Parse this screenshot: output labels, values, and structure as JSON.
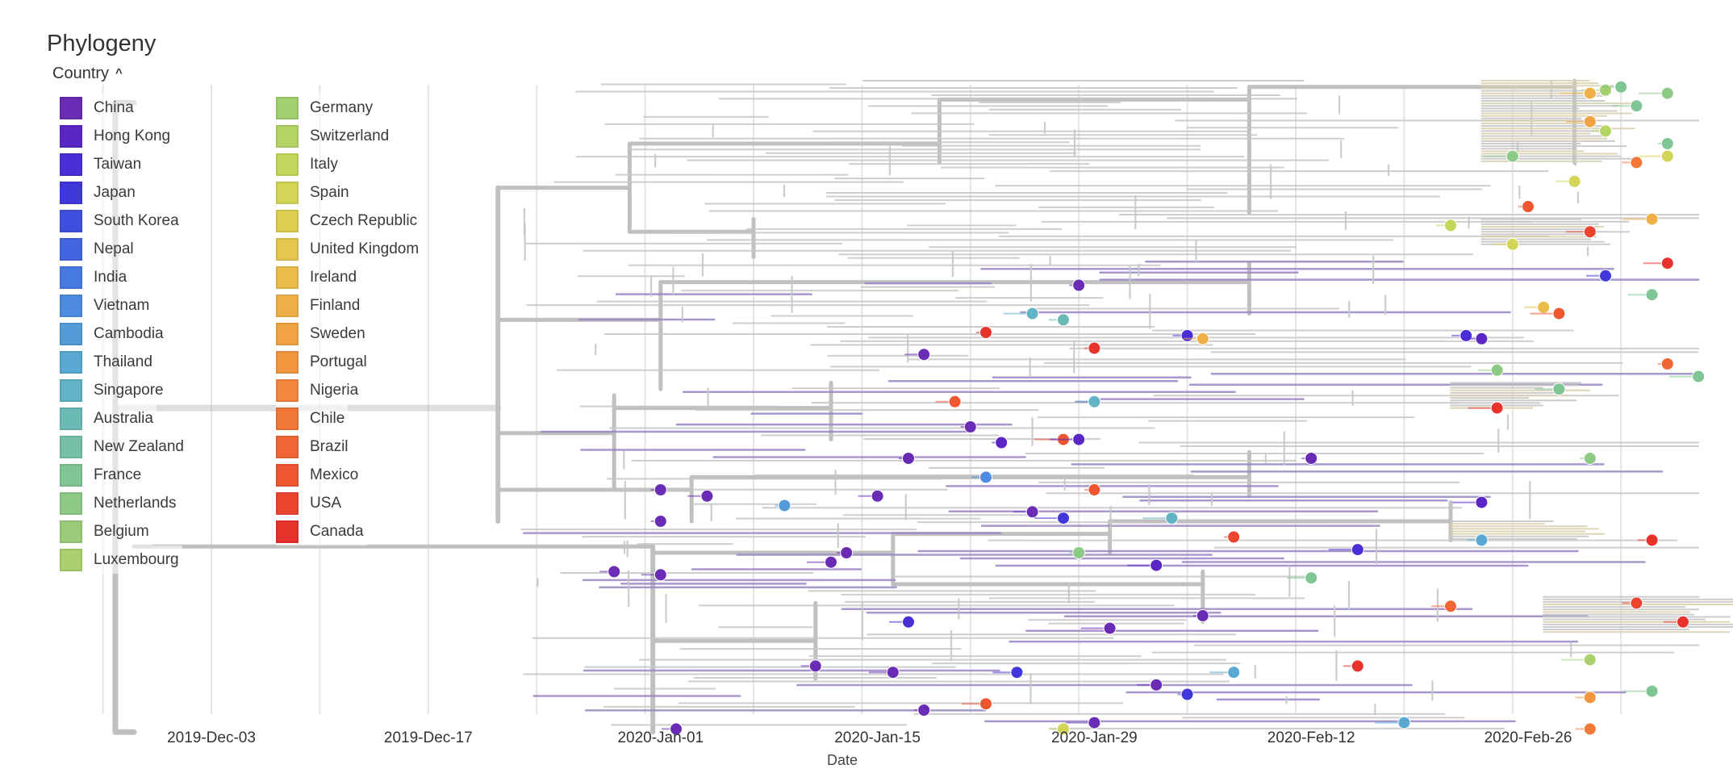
{
  "title": "Phylogeny",
  "legend_toggle_label": "Country",
  "colors": {
    "branch": "#c6c6c6",
    "trunk": "#c0c0c0",
    "grid": "#e4e4e4",
    "tick_text": "#333333"
  },
  "countries": [
    {
      "name": "China",
      "color": "#6a2cb4"
    },
    {
      "name": "Hong Kong",
      "color": "#5a27c6"
    },
    {
      "name": "Taiwan",
      "color": "#4c2ed6"
    },
    {
      "name": "Japan",
      "color": "#4138db"
    },
    {
      "name": "South Korea",
      "color": "#3f4fdd"
    },
    {
      "name": "Nepal",
      "color": "#4265e0"
    },
    {
      "name": "India",
      "color": "#477ae0"
    },
    {
      "name": "Vietnam",
      "color": "#4d8ce0"
    },
    {
      "name": "Cambodia",
      "color": "#539cd8"
    },
    {
      "name": "Thailand",
      "color": "#5aa9d2"
    },
    {
      "name": "Singapore",
      "color": "#62b3c6"
    },
    {
      "name": "Australia",
      "color": "#6cbab6"
    },
    {
      "name": "New Zealand",
      "color": "#76c0a6"
    },
    {
      "name": "France",
      "color": "#80c594"
    },
    {
      "name": "Netherlands",
      "color": "#8dca86"
    },
    {
      "name": "Belgium",
      "color": "#9ccc7a"
    },
    {
      "name": "Luxembourg",
      "color": "#abd06e"
    },
    {
      "name": "Germany",
      "color": "#a3d06e"
    },
    {
      "name": "Switzerland",
      "color": "#b4d464"
    },
    {
      "name": "Italy",
      "color": "#c4d65c"
    },
    {
      "name": "Spain",
      "color": "#d2d556"
    },
    {
      "name": "Czech Republic",
      "color": "#dccf52"
    },
    {
      "name": "United Kingdom",
      "color": "#e4c74e"
    },
    {
      "name": "Ireland",
      "color": "#e9bc4b"
    },
    {
      "name": "Finland",
      "color": "#eeb047"
    },
    {
      "name": "Sweden",
      "color": "#f1a343"
    },
    {
      "name": "Portugal",
      "color": "#f2963f"
    },
    {
      "name": "Nigeria",
      "color": "#f2873b"
    },
    {
      "name": "Chile",
      "color": "#f27838"
    },
    {
      "name": "Brazil",
      "color": "#f06735"
    },
    {
      "name": "Mexico",
      "color": "#ee5632"
    },
    {
      "name": "USA",
      "color": "#eb442f"
    },
    {
      "name": "Canada",
      "color": "#e8322c"
    }
  ],
  "chart_data": {
    "type": "scatter",
    "title": "Phylogeny",
    "xlabel": "Date",
    "ylabel": "",
    "x_ticks": [
      "2019-Dec-03",
      "2019-Dec-17",
      "2020-Jan-01",
      "2020-Jan-15",
      "2020-Jan-29",
      "2020-Feb-12",
      "2020-Feb-26"
    ],
    "x_tick_days": [
      0,
      14,
      29,
      43,
      57,
      71,
      85
    ],
    "x_range_days": [
      -7,
      97
    ],
    "grid": true,
    "legend": "top-left",
    "note": "Time-scaled phylogenetic tree; tips colored by sampling country. x in days since 2019-Dec-03, y is tip rank (0 = top).",
    "tips": [
      {
        "country": "Germany",
        "x": 90,
        "y": 3
      },
      {
        "country": "France",
        "x": 91,
        "y": 2
      },
      {
        "country": "Finland",
        "x": 89,
        "y": 4
      },
      {
        "country": "Netherlands",
        "x": 94,
        "y": 4
      },
      {
        "country": "France",
        "x": 92,
        "y": 8
      },
      {
        "country": "Sweden",
        "x": 89,
        "y": 13
      },
      {
        "country": "Switzerland",
        "x": 90,
        "y": 16
      },
      {
        "country": "France",
        "x": 94,
        "y": 20
      },
      {
        "country": "Spain",
        "x": 94,
        "y": 24
      },
      {
        "country": "Netherlands",
        "x": 84,
        "y": 24
      },
      {
        "country": "Spain",
        "x": 88,
        "y": 32
      },
      {
        "country": "Chile",
        "x": 92,
        "y": 26
      },
      {
        "country": "Mexico",
        "x": 85,
        "y": 40
      },
      {
        "country": "Italy",
        "x": 80,
        "y": 46
      },
      {
        "country": "USA",
        "x": 89,
        "y": 48
      },
      {
        "country": "Finland",
        "x": 93,
        "y": 44
      },
      {
        "country": "Spain",
        "x": 84,
        "y": 52
      },
      {
        "country": "Canada",
        "x": 94,
        "y": 58
      },
      {
        "country": "Japan",
        "x": 90,
        "y": 62
      },
      {
        "country": "France",
        "x": 93,
        "y": 68
      },
      {
        "country": "China",
        "x": 56,
        "y": 65
      },
      {
        "country": "Ireland",
        "x": 86,
        "y": 72
      },
      {
        "country": "Mexico",
        "x": 87,
        "y": 74
      },
      {
        "country": "Taiwan",
        "x": 81,
        "y": 81
      },
      {
        "country": "Hong Kong",
        "x": 82,
        "y": 82
      },
      {
        "country": "Singapore",
        "x": 53,
        "y": 74
      },
      {
        "country": "Australia",
        "x": 55,
        "y": 76
      },
      {
        "country": "Canada",
        "x": 50,
        "y": 80
      },
      {
        "country": "Canada",
        "x": 57,
        "y": 85
      },
      {
        "country": "China",
        "x": 46,
        "y": 87
      },
      {
        "country": "Taiwan",
        "x": 63,
        "y": 81
      },
      {
        "country": "Finland",
        "x": 64,
        "y": 82
      },
      {
        "country": "Netherlands",
        "x": 83,
        "y": 92
      },
      {
        "country": "Brazil",
        "x": 94,
        "y": 90
      },
      {
        "country": "France",
        "x": 96,
        "y": 94
      },
      {
        "country": "France",
        "x": 87,
        "y": 98
      },
      {
        "country": "Canada",
        "x": 83,
        "y": 104
      },
      {
        "country": "China",
        "x": 57,
        "y": 102
      },
      {
        "country": "Mexico",
        "x": 48,
        "y": 102
      },
      {
        "country": "Singapore",
        "x": 57,
        "y": 102
      },
      {
        "country": "China",
        "x": 49,
        "y": 110
      },
      {
        "country": "Mexico",
        "x": 55,
        "y": 114
      },
      {
        "country": "Hong Kong",
        "x": 51,
        "y": 115
      },
      {
        "country": "China",
        "x": 45,
        "y": 120
      },
      {
        "country": "Hong Kong",
        "x": 56,
        "y": 114
      },
      {
        "country": "China",
        "x": 71,
        "y": 120
      },
      {
        "country": "Vietnam",
        "x": 50,
        "y": 126
      },
      {
        "country": "Netherlands",
        "x": 89,
        "y": 120
      },
      {
        "country": "China",
        "x": 29,
        "y": 130
      },
      {
        "country": "China",
        "x": 32,
        "y": 132
      },
      {
        "country": "Cambodia",
        "x": 37,
        "y": 135
      },
      {
        "country": "China",
        "x": 43,
        "y": 132
      },
      {
        "country": "Mexico",
        "x": 57,
        "y": 130
      },
      {
        "country": "China",
        "x": 53,
        "y": 137
      },
      {
        "country": "Japan",
        "x": 55,
        "y": 139
      },
      {
        "country": "Singapore",
        "x": 62,
        "y": 139
      },
      {
        "country": "China",
        "x": 29,
        "y": 140
      },
      {
        "country": "Hong Kong",
        "x": 82,
        "y": 134
      },
      {
        "country": "USA",
        "x": 66,
        "y": 145
      },
      {
        "country": "Thailand",
        "x": 82,
        "y": 146
      },
      {
        "country": "Canada",
        "x": 93,
        "y": 146
      },
      {
        "country": "Taiwan",
        "x": 74,
        "y": 149
      },
      {
        "country": "China",
        "x": 41,
        "y": 150
      },
      {
        "country": "China",
        "x": 26,
        "y": 156
      },
      {
        "country": "China",
        "x": 29,
        "y": 157
      },
      {
        "country": "China",
        "x": 40,
        "y": 153
      },
      {
        "country": "Netherlands",
        "x": 56,
        "y": 150
      },
      {
        "country": "Hong Kong",
        "x": 61,
        "y": 154
      },
      {
        "country": "France",
        "x": 71,
        "y": 158
      },
      {
        "country": "USA",
        "x": 92,
        "y": 166
      },
      {
        "country": "Brazil",
        "x": 80,
        "y": 167
      },
      {
        "country": "Canada",
        "x": 95,
        "y": 172
      },
      {
        "country": "China",
        "x": 64,
        "y": 170
      },
      {
        "country": "Taiwan",
        "x": 45,
        "y": 172
      },
      {
        "country": "China",
        "x": 58,
        "y": 174
      },
      {
        "country": "Canada",
        "x": 74,
        "y": 186
      },
      {
        "country": "Thailand",
        "x": 66,
        "y": 188
      },
      {
        "country": "China",
        "x": 39,
        "y": 186
      },
      {
        "country": "China",
        "x": 44,
        "y": 188
      },
      {
        "country": "Luxembourg",
        "x": 89,
        "y": 184
      },
      {
        "country": "Japan",
        "x": 52,
        "y": 188
      },
      {
        "country": "China",
        "x": 61,
        "y": 192
      },
      {
        "country": "Portugal",
        "x": 89,
        "y": 196
      },
      {
        "country": "France",
        "x": 93,
        "y": 194
      },
      {
        "country": "Japan",
        "x": 63,
        "y": 195
      },
      {
        "country": "Mexico",
        "x": 50,
        "y": 198
      },
      {
        "country": "China",
        "x": 46,
        "y": 200
      },
      {
        "country": "Thailand",
        "x": 77,
        "y": 204
      },
      {
        "country": "China",
        "x": 30,
        "y": 206
      },
      {
        "country": "China",
        "x": 57,
        "y": 204
      },
      {
        "country": "Spain",
        "x": 55,
        "y": 206
      },
      {
        "country": "Chile",
        "x": 89,
        "y": 206
      }
    ]
  },
  "axis": {
    "title": "Date",
    "ticks": [
      "2019-Dec-03",
      "2019-Dec-17",
      "2020-Jan-01",
      "2020-Jan-15",
      "2020-Jan-29",
      "2020-Feb-12",
      "2020-Feb-26"
    ]
  }
}
